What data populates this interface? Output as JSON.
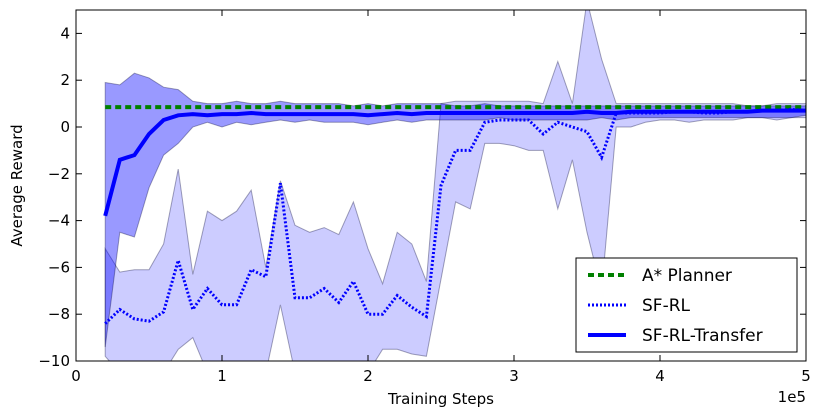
{
  "chart_data": {
    "type": "line",
    "title": "",
    "xlabel": "Training Steps",
    "ylabel": "Average Reward",
    "x_offset_label": "1e5",
    "xlim": [
      0,
      5
    ],
    "ylim": [
      -10,
      5
    ],
    "xticks": [
      "0",
      "1",
      "2",
      "3",
      "4",
      "5"
    ],
    "yticks": [
      "−10",
      "−8",
      "−6",
      "−4",
      "−2",
      "0",
      "2",
      "4"
    ],
    "grid": false,
    "legend_position": "lower-right",
    "x": [
      0.2,
      0.3,
      0.4,
      0.5,
      0.6,
      0.7,
      0.8,
      0.9,
      1.0,
      1.1,
      1.2,
      1.3,
      1.4,
      1.5,
      1.6,
      1.7,
      1.8,
      1.9,
      2.0,
      2.1,
      2.2,
      2.3,
      2.4,
      2.5,
      2.6,
      2.7,
      2.8,
      2.9,
      3.0,
      3.1,
      3.2,
      3.3,
      3.4,
      3.5,
      3.6,
      3.7,
      3.8,
      3.9,
      4.0,
      4.1,
      4.2,
      4.3,
      4.4,
      4.5,
      4.6,
      4.7,
      4.8,
      4.9,
      5.0
    ],
    "series": [
      {
        "name": "A* Planner",
        "color": "#008000",
        "style": "dashed",
        "values": [
          0.85,
          0.85,
          0.85,
          0.85,
          0.85,
          0.85,
          0.85,
          0.85,
          0.85,
          0.85,
          0.85,
          0.85,
          0.85,
          0.85,
          0.85,
          0.85,
          0.85,
          0.85,
          0.85,
          0.85,
          0.85,
          0.85,
          0.85,
          0.85,
          0.85,
          0.85,
          0.85,
          0.85,
          0.85,
          0.85,
          0.85,
          0.85,
          0.85,
          0.85,
          0.85,
          0.85,
          0.85,
          0.85,
          0.85,
          0.85,
          0.85,
          0.85,
          0.85,
          0.85,
          0.85,
          0.85,
          0.85,
          0.85,
          0.85
        ]
      },
      {
        "name": "SF-RL",
        "color": "#0000ff",
        "style": "dotted",
        "band_opacity": 0.2,
        "values": [
          -8.4,
          -7.8,
          -8.2,
          -8.3,
          -7.9,
          -5.7,
          -7.8,
          -6.9,
          -7.6,
          -7.6,
          -6.1,
          -6.4,
          -2.4,
          -7.3,
          -7.3,
          -6.9,
          -7.5,
          -6.6,
          -8.0,
          -8.0,
          -7.2,
          -7.7,
          -8.1,
          -2.5,
          -1.0,
          -1.0,
          0.2,
          0.3,
          0.3,
          0.3,
          -0.3,
          0.2,
          0.0,
          -0.2,
          -1.3,
          0.6,
          0.6,
          0.6,
          0.6,
          0.65,
          0.65,
          0.6,
          0.6,
          0.65,
          0.65,
          0.7,
          0.7,
          0.75,
          0.7
        ],
        "lower": [
          -9.8,
          -10.5,
          -10.5,
          -10.5,
          -10.5,
          -9.5,
          -9.0,
          -10.5,
          -10.5,
          -10.5,
          -10.5,
          -10.5,
          -7.6,
          -10.5,
          -10.5,
          -10.5,
          -10.5,
          -10.5,
          -10.5,
          -9.5,
          -9.5,
          -9.7,
          -9.8,
          -6.5,
          -3.2,
          -3.5,
          -0.7,
          -0.7,
          -0.8,
          -1.0,
          -1.0,
          -3.5,
          -1.4,
          -4.5,
          -7.0,
          0.0,
          0.0,
          0.2,
          0.3,
          0.3,
          0.2,
          0.3,
          0.3,
          0.3,
          0.4,
          0.4,
          0.3,
          0.4,
          0.4
        ],
        "upper": [
          -5.2,
          -6.2,
          -6.1,
          -6.1,
          -5.0,
          -1.8,
          -6.3,
          -3.6,
          -4.0,
          -3.6,
          -2.7,
          -6.0,
          -2.3,
          -4.2,
          -4.5,
          -4.3,
          -4.6,
          -3.2,
          -5.2,
          -6.7,
          -4.5,
          -5.0,
          -6.6,
          1.0,
          1.1,
          1.1,
          1.1,
          1.1,
          1.1,
          1.1,
          1.0,
          2.8,
          1.0,
          5.4,
          2.9,
          1.0,
          1.0,
          1.0,
          1.0,
          1.0,
          1.0,
          1.0,
          1.0,
          1.0,
          0.9,
          0.9,
          1.0,
          1.0,
          1.0
        ]
      },
      {
        "name": "SF-RL-Transfer",
        "color": "#0000ff",
        "style": "solid",
        "band_opacity": 0.4,
        "values": [
          -3.8,
          -1.4,
          -1.2,
          -0.3,
          0.3,
          0.5,
          0.55,
          0.5,
          0.55,
          0.55,
          0.6,
          0.55,
          0.55,
          0.55,
          0.55,
          0.55,
          0.55,
          0.55,
          0.5,
          0.55,
          0.6,
          0.55,
          0.6,
          0.6,
          0.6,
          0.6,
          0.6,
          0.6,
          0.6,
          0.6,
          0.6,
          0.6,
          0.6,
          0.65,
          0.6,
          0.6,
          0.65,
          0.65,
          0.65,
          0.65,
          0.65,
          0.65,
          0.65,
          0.65,
          0.65,
          0.7,
          0.7,
          0.7,
          0.7
        ],
        "lower": [
          -9.4,
          -4.5,
          -4.7,
          -2.6,
          -1.2,
          -0.7,
          0.0,
          0.2,
          0.0,
          0.2,
          0.1,
          0.2,
          0.3,
          0.2,
          0.3,
          0.2,
          0.2,
          0.2,
          0.1,
          0.2,
          0.3,
          0.2,
          0.3,
          0.3,
          0.3,
          0.3,
          0.3,
          0.4,
          0.3,
          0.3,
          0.3,
          0.3,
          0.3,
          0.3,
          0.4,
          0.3,
          0.4,
          0.4,
          0.4,
          0.4,
          0.4,
          0.4,
          0.4,
          0.4,
          0.4,
          0.4,
          0.4,
          0.4,
          0.5
        ],
        "upper": [
          1.9,
          1.8,
          2.3,
          2.1,
          1.7,
          1.6,
          1.1,
          1.0,
          1.0,
          1.1,
          1.0,
          1.0,
          1.1,
          1.0,
          1.0,
          1.0,
          1.0,
          0.9,
          1.0,
          0.9,
          1.0,
          1.0,
          1.0,
          1.0,
          0.9,
          0.9,
          1.0,
          0.9,
          0.9,
          0.9,
          0.9,
          0.9,
          0.9,
          0.9,
          0.9,
          0.9,
          0.9,
          0.9,
          0.9,
          0.9,
          0.9,
          0.9,
          0.9,
          0.9,
          0.9,
          0.9,
          0.9,
          0.9,
          0.9
        ]
      }
    ]
  }
}
